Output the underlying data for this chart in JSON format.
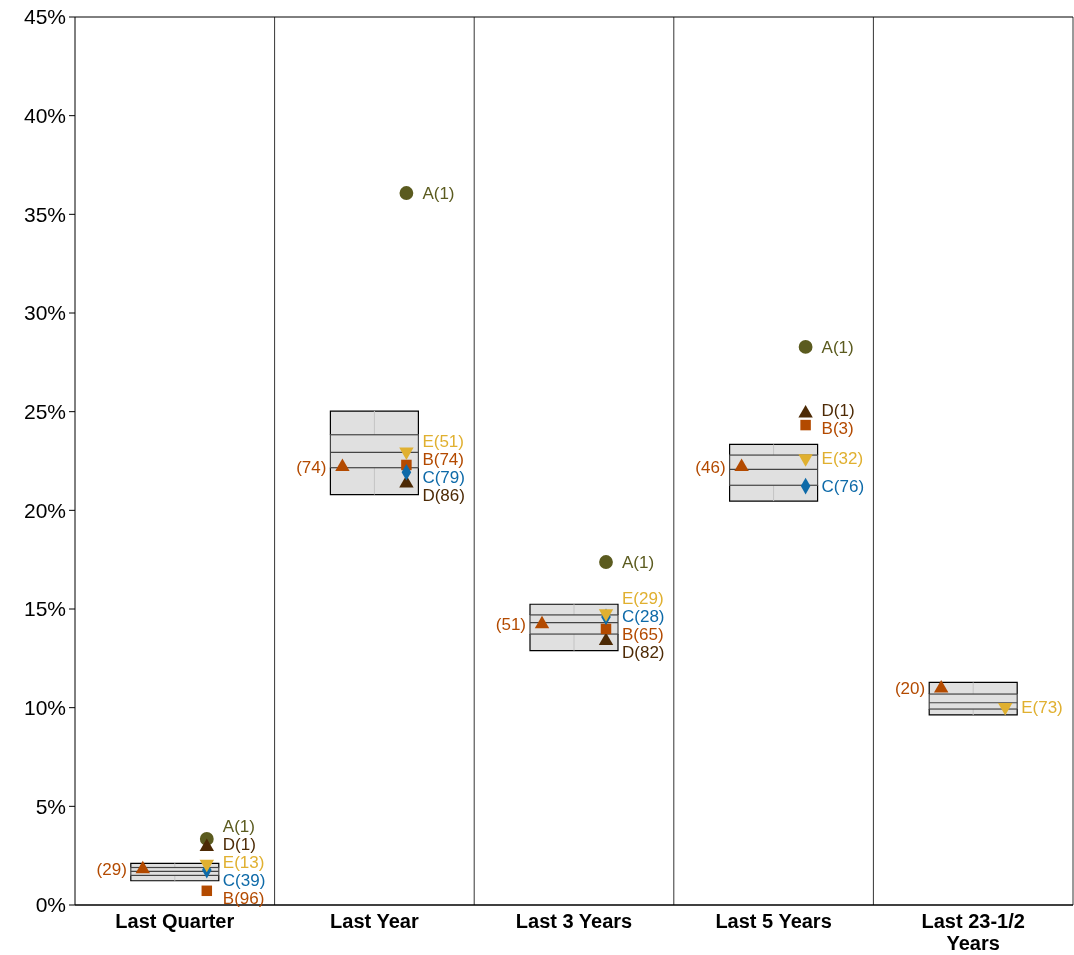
{
  "chart_data": {
    "type": "box",
    "categories": [
      "Last Quarter",
      "Last Year",
      "Last 3 Years",
      "Last 5 Years",
      "Last 23-1/2 Years"
    ],
    "boxes": [
      {
        "low": 1.23,
        "q1": 1.5,
        "median": 1.7,
        "q3": 1.9,
        "high": 2.11
      },
      {
        "low": 20.8,
        "q1": 22.16,
        "median": 22.94,
        "q3": 23.83,
        "high": 25.03
      },
      {
        "low": 12.89,
        "q1": 13.73,
        "median": 14.31,
        "q3": 14.7,
        "high": 15.24
      },
      {
        "low": 20.47,
        "q1": 21.27,
        "median": 22.08,
        "q3": 22.8,
        "high": 23.34
      },
      {
        "low": 9.63,
        "q1": 9.93,
        "median": 10.25,
        "q3": 10.69,
        "high": 11.28
      }
    ],
    "ylim": [
      0,
      45
    ],
    "yticks": [
      {
        "value": 0,
        "label": "0%"
      },
      {
        "value": 5,
        "label": "5%"
      },
      {
        "value": 10,
        "label": "10%"
      },
      {
        "value": 15,
        "label": "15%"
      },
      {
        "value": 20,
        "label": "20%"
      },
      {
        "value": 25,
        "label": "25%"
      },
      {
        "value": 30,
        "label": "30%"
      },
      {
        "value": 35,
        "label": "35%"
      },
      {
        "value": 40,
        "label": "40%"
      },
      {
        "value": 45,
        "label": "45%"
      }
    ],
    "series": [
      {
        "type": "scatter",
        "marker": "triangle",
        "color": "#b34a00",
        "x": [
          "Last Quarter",
          "Last Year",
          "Last 3 Years",
          "Last 5 Years",
          "Last 23-1/2 Years"
        ],
        "values": [
          1.82,
          22.2,
          14.24,
          22.2,
          10.98
        ]
      },
      {
        "type": "scatter",
        "marker": "circle",
        "color": "#5b5b1f",
        "x": [
          "Last Quarter",
          "Last Year",
          "Last 3 Years",
          "Last 5 Years",
          "Last 23-1/2 Years"
        ],
        "values": [
          3.35,
          36.08,
          17.38,
          28.28,
          null
        ]
      },
      {
        "type": "scatter",
        "marker": "triangle",
        "color": "#4d2a05",
        "x": [
          "Last Quarter",
          "Last Year",
          "Last 3 Years",
          "Last 5 Years",
          "Last 23-1/2 Years"
        ],
        "values": [
          2.95,
          21.37,
          13.39,
          24.92,
          null
        ]
      },
      {
        "type": "scatter",
        "marker": "square",
        "color": "#b34a00",
        "x": [
          "Last Quarter",
          "Last Year",
          "Last 3 Years",
          "Last 5 Years",
          "Last 23-1/2 Years"
        ],
        "values": [
          0.72,
          22.3,
          13.99,
          24.32,
          null
        ]
      },
      {
        "type": "scatter",
        "marker": "diamond",
        "color": "#0e6aa8",
        "x": [
          "Last Quarter",
          "Last Year",
          "Last 3 Years",
          "Last 5 Years",
          "Last 23-1/2 Years"
        ],
        "values": [
          1.77,
          21.93,
          14.6,
          21.23,
          null
        ]
      },
      {
        "type": "scatter",
        "marker": "triangle-down",
        "color": "#e0b030",
        "x": [
          "Last Quarter",
          "Last Year",
          "Last 3 Years",
          "Last 5 Years",
          "Last 23-1/2 Years"
        ],
        "values": [
          2.08,
          22.97,
          14.78,
          22.63,
          10.02
        ]
      }
    ],
    "annotations": [
      "(29)",
      "(74)",
      "(51)",
      "(46)",
      "(20)",
      "A(1)",
      "A(1)",
      "A(1)",
      "A(1)",
      "D(1)",
      "D(86)",
      "D(82)",
      "D(1)",
      "B(96)",
      "B(74)",
      "B(65)",
      "B(3)",
      "C(39)",
      "C(79)",
      "C(28)",
      "C(76)",
      "E(13)",
      "E(51)",
      "E(29)",
      "E(32)",
      "E(73)"
    ]
  }
}
